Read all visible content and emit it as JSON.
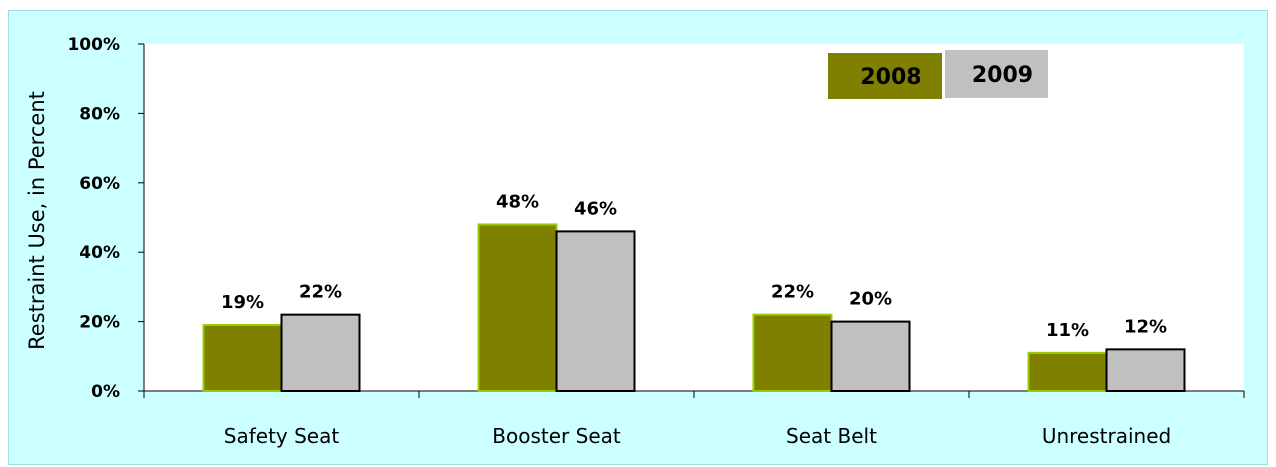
{
  "chart_data": {
    "type": "bar",
    "categories": [
      "Safety Seat",
      "Booster Seat",
      "Seat Belt",
      "Unrestrained"
    ],
    "series": [
      {
        "name": "2008",
        "values": [
          19,
          48,
          22,
          11
        ],
        "color": "#808000",
        "edge": "#99cc00"
      },
      {
        "name": "2009",
        "values": [
          22,
          46,
          20,
          12
        ],
        "color": "#c0c0c0",
        "edge": "#000000"
      }
    ],
    "data_labels": [
      [
        "19%",
        "48%",
        "22%",
        "11%"
      ],
      [
        "22%",
        "46%",
        "20%",
        "12%"
      ]
    ],
    "ylabel": "Restraint Use, in Percent",
    "xlabel": "",
    "ylim": [
      0,
      100
    ],
    "yticks": [
      0,
      20,
      40,
      60,
      80,
      100
    ],
    "ytick_labels": [
      "0%",
      "20%",
      "40%",
      "60%",
      "80%",
      "100%"
    ],
    "grid": false,
    "legend_position": "top-right",
    "background": "#ccffff",
    "plot_background": "#ffffff"
  }
}
